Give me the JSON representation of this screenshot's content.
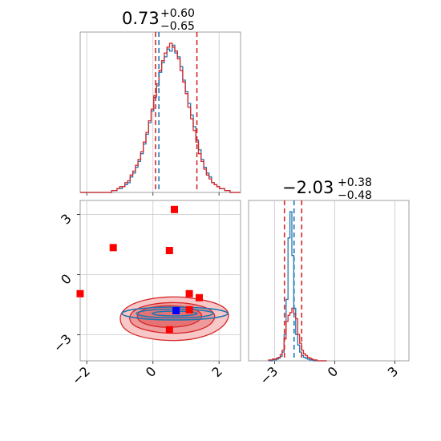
{
  "chart_data": {
    "type": "scatter",
    "subtype": "corner-plot",
    "params": [
      {
        "median_text": "0.73",
        "upper_text": "+0.60",
        "lower_text": "−0.65",
        "median": 0.73,
        "q16": 0.08,
        "q84": 1.33,
        "range": [
          -2.2,
          2.65
        ],
        "ticks": [
          -2,
          0,
          2
        ],
        "tick_labels": [
          "−2",
          "0",
          "2"
        ]
      },
      {
        "median_text": "−2.03",
        "upper_text": "+0.38",
        "lower_text": "−0.48",
        "median": -2.03,
        "q16": -2.51,
        "q84": -1.65,
        "range": [
          -4.3,
          3.7
        ],
        "ticks": [
          -3,
          0,
          3
        ],
        "tick_labels": [
          "−3",
          "0",
          "3"
        ]
      }
    ],
    "hist1": {
      "bins": [
        -2.2,
        2.65
      ],
      "red": [
        0,
        0,
        0,
        0,
        0,
        0,
        0,
        0,
        0,
        0,
        0,
        0,
        1,
        1,
        2,
        3,
        3,
        5,
        6,
        9,
        11,
        14,
        17,
        21,
        26,
        31,
        37,
        43,
        50,
        56,
        63,
        68,
        72,
        75,
        77,
        75,
        73,
        69,
        63,
        57,
        51,
        44,
        38,
        32,
        26,
        20,
        16,
        12,
        9,
        7,
        5,
        4,
        3,
        2,
        2,
        1,
        1,
        0,
        0,
        0,
        0
      ],
      "blue": [
        0,
        0,
        0,
        0,
        0,
        0,
        0,
        0,
        0,
        0,
        0,
        0,
        1,
        1,
        2,
        2,
        3,
        4,
        5,
        8,
        10,
        13,
        16,
        20,
        25,
        30,
        36,
        42,
        49,
        55,
        62,
        67,
        70,
        74,
        73,
        76,
        72,
        70,
        65,
        58,
        52,
        46,
        40,
        34,
        27,
        22,
        17,
        13,
        10,
        8,
        5,
        4,
        3,
        2,
        2,
        1,
        1,
        0,
        0,
        0,
        0
      ]
    },
    "hist2": {
      "bins": [
        -3.3,
        -0.4
      ],
      "red": [
        1,
        1,
        2,
        2,
        3,
        4,
        7,
        12,
        25,
        45,
        52,
        55,
        60,
        54,
        48,
        30,
        20,
        12,
        8,
        6,
        4,
        3,
        2,
        1,
        1,
        0,
        0,
        0,
        0,
        0
      ],
      "blue": [
        0,
        0,
        1,
        1,
        2,
        3,
        5,
        10,
        30,
        70,
        140,
        170,
        120,
        60,
        30,
        18,
        10,
        6,
        4,
        3,
        2,
        1,
        1,
        0,
        0,
        0,
        0,
        0,
        0,
        0
      ]
    },
    "red_points": [
      {
        "x": 0.65,
        "y": 3.25
      },
      {
        "x": -1.2,
        "y": 1.35
      },
      {
        "x": 0.5,
        "y": 1.2
      },
      {
        "x": -2.2,
        "y": -0.95
      },
      {
        "x": 1.1,
        "y": -0.95
      },
      {
        "x": 1.4,
        "y": -1.15
      },
      {
        "x": 1.1,
        "y": -1.75
      },
      {
        "x": 0.5,
        "y": -2.75
      }
    ],
    "blue_point": {
      "x": 0.7,
      "y": -1.8
    },
    "grid": true
  }
}
